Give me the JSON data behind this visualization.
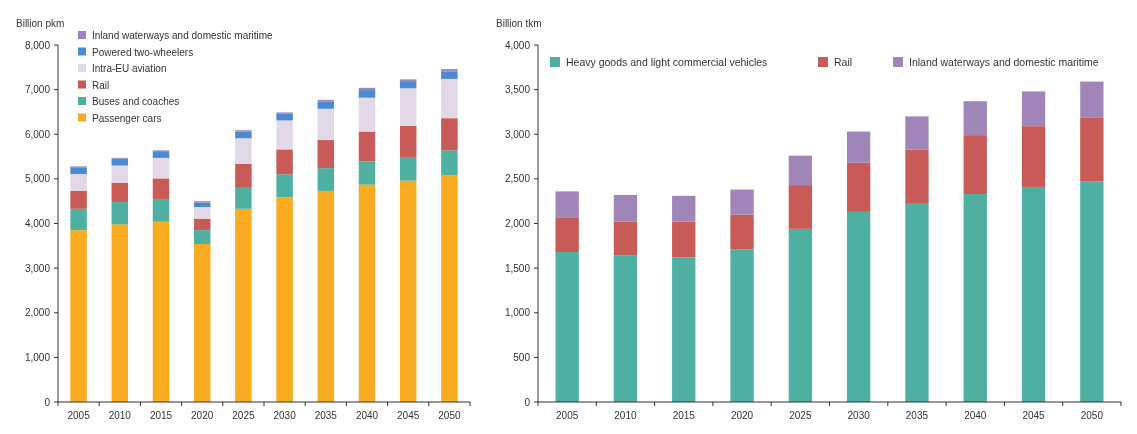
{
  "chart_data": [
    {
      "type": "bar",
      "stacked": true,
      "ylabel": "Billion pkm",
      "categories": [
        "2005",
        "2010",
        "2015",
        "2020",
        "2025",
        "2030",
        "2035",
        "2040",
        "2045",
        "2050"
      ],
      "ylim": [
        0,
        8000
      ],
      "yticks": [
        {
          "value": 0,
          "label": "0"
        },
        {
          "value": 1000,
          "label": "1,000"
        },
        {
          "value": 2000,
          "label": "2,000"
        },
        {
          "value": 3000,
          "label": "3,000"
        },
        {
          "value": 4000,
          "label": "4,000"
        },
        {
          "value": 5000,
          "label": "5,000"
        },
        {
          "value": 6000,
          "label": "6,000"
        },
        {
          "value": 7000,
          "label": "7,000"
        },
        {
          "value": 8000,
          "label": "8,000"
        }
      ],
      "grid": false,
      "legend": "top left",
      "series": [
        {
          "name": "Passenger cars",
          "color": "#f9ac22",
          "values": [
            3850,
            3980,
            4040,
            3540,
            4330,
            4590,
            4730,
            4870,
            4960,
            5080
          ]
        },
        {
          "name": "Buses and coaches",
          "color": "#4eb0a0",
          "values": [
            480,
            500,
            510,
            310,
            470,
            510,
            510,
            520,
            530,
            560
          ]
        },
        {
          "name": "Rail",
          "color": "#c85a57",
          "values": [
            400,
            430,
            460,
            260,
            540,
            560,
            630,
            670,
            700,
            720
          ]
        },
        {
          "name": "Intra-EU aviation",
          "color": "#e1d9e8",
          "values": [
            380,
            390,
            460,
            260,
            570,
            650,
            700,
            760,
            840,
            880
          ]
        },
        {
          "name": "Powered two-wheelers",
          "color": "#4a8ad3",
          "values": [
            150,
            150,
            150,
            100,
            150,
            150,
            160,
            170,
            160,
            170
          ]
        },
        {
          "name": "Inland waterways and domestic maritime",
          "color": "#a084b8",
          "values": [
            20,
            20,
            20,
            30,
            30,
            30,
            40,
            50,
            40,
            50
          ]
        }
      ]
    },
    {
      "type": "bar",
      "stacked": true,
      "ylabel": "Billion tkm",
      "categories": [
        "2005",
        "2010",
        "2015",
        "2020",
        "2025",
        "2030",
        "2035",
        "2040",
        "2045",
        "2050"
      ],
      "ylim": [
        0,
        4000
      ],
      "yticks": [
        0,
        500,
        {
          "value": 1000,
          "label": "1,000"
        },
        {
          "value": 1500,
          "label": "1,500"
        },
        {
          "value": 2000,
          "label": "2,000"
        },
        {
          "value": 2500,
          "label": "2,500"
        },
        {
          "value": 3000,
          "label": "3,000"
        },
        {
          "value": 3500,
          "label": "3,500"
        },
        {
          "value": 4000,
          "label": "4,000"
        }
      ],
      "grid": false,
      "legend": "top",
      "series": [
        {
          "name": "Heavy goods and light commercial vehicles",
          "color": "#4fb0a2",
          "values": [
            1680,
            1640,
            1620,
            1710,
            1940,
            2130,
            2230,
            2330,
            2410,
            2470
          ]
        },
        {
          "name": "Rail",
          "color": "#c85a57",
          "values": [
            390,
            380,
            400,
            390,
            490,
            550,
            600,
            660,
            680,
            720
          ]
        },
        {
          "name": "Inland waterways and domestic maritime",
          "color": "#a085b8",
          "values": [
            290,
            300,
            290,
            280,
            330,
            350,
            370,
            380,
            390,
            400
          ]
        }
      ]
    }
  ]
}
